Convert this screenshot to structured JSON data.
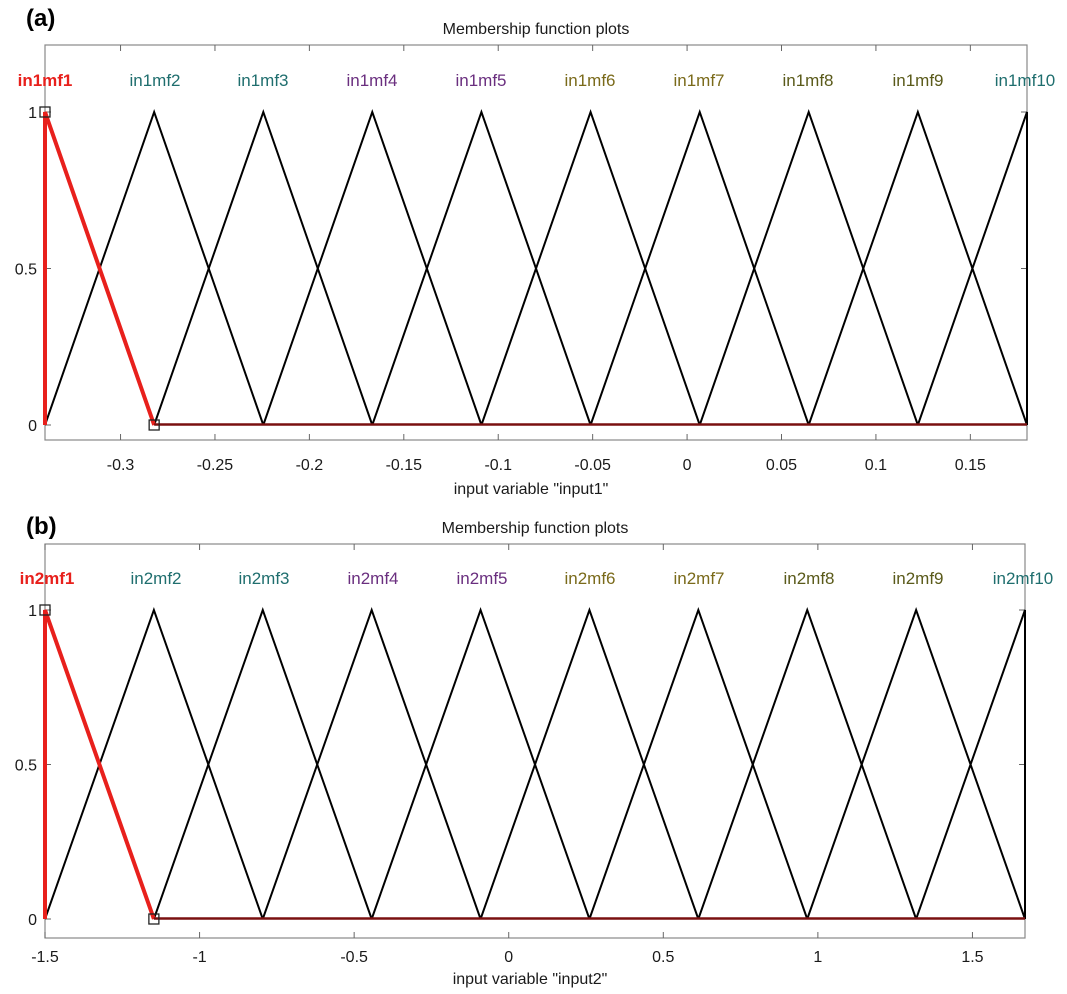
{
  "figure": {
    "panel_labels": [
      "(a)",
      "(b)"
    ]
  },
  "chart_data": [
    {
      "type": "line",
      "panel": "(a)",
      "title": "Membership function plots",
      "xlabel": "input variable \"input1\"",
      "ylabel": "",
      "xlim": [
        -0.34,
        0.18
      ],
      "ylim": [
        0,
        1
      ],
      "xticks": [
        -0.3,
        -0.25,
        -0.2,
        -0.15,
        -0.1,
        -0.05,
        0,
        0.05,
        0.1,
        0.15
      ],
      "xtick_labels": [
        "-0.3",
        "-0.25",
        "-0.2",
        "-0.15",
        "-0.1",
        "-0.05",
        "0",
        "0.05",
        "0.1",
        "0.15"
      ],
      "yticks": [
        0,
        0.5,
        1
      ],
      "ytick_labels": [
        "0",
        "0.5",
        "1"
      ],
      "highlight_color": "#e8201c",
      "line_color": "#000000",
      "label_colors": [
        "#e8201c",
        "#1f6e6e",
        "#1f6e6e",
        "#6a2f7f",
        "#6a2f7f",
        "#7a6a1a",
        "#7a6a1a",
        "#5a5a1a",
        "#5a5a1a",
        "#1f6e6e"
      ],
      "series": [
        {
          "name": "in1mf1",
          "selected": true,
          "x": [
            -0.34,
            -0.34,
            -0.2822
          ],
          "y": [
            0,
            1,
            0
          ]
        },
        {
          "name": "in1mf2",
          "x": [
            -0.34,
            -0.2822,
            -0.2244
          ],
          "y": [
            0,
            1,
            0
          ]
        },
        {
          "name": "in1mf3",
          "x": [
            -0.2822,
            -0.2244,
            -0.1667
          ],
          "y": [
            0,
            1,
            0
          ]
        },
        {
          "name": "in1mf4",
          "x": [
            -0.2244,
            -0.1667,
            -0.1089
          ],
          "y": [
            0,
            1,
            0
          ]
        },
        {
          "name": "in1mf5",
          "x": [
            -0.1667,
            -0.1089,
            -0.0511
          ],
          "y": [
            0,
            1,
            0
          ]
        },
        {
          "name": "in1mf6",
          "x": [
            -0.1089,
            -0.0511,
            0.0067
          ],
          "y": [
            0,
            1,
            0
          ]
        },
        {
          "name": "in1mf7",
          "x": [
            -0.0511,
            0.0067,
            0.0644
          ],
          "y": [
            0,
            1,
            0
          ]
        },
        {
          "name": "in1mf8",
          "x": [
            0.0067,
            0.0644,
            0.1222
          ],
          "y": [
            0,
            1,
            0
          ]
        },
        {
          "name": "in1mf9",
          "x": [
            0.0644,
            0.1222,
            0.18
          ],
          "y": [
            0,
            1,
            0
          ]
        },
        {
          "name": "in1mf10",
          "x": [
            0.1222,
            0.18,
            0.18
          ],
          "y": [
            0,
            1,
            0
          ]
        }
      ]
    },
    {
      "type": "line",
      "panel": "(b)",
      "title": "Membership function plots",
      "xlabel": "input variable \"input2\"",
      "ylabel": "",
      "xlim": [
        -1.5,
        1.67
      ],
      "ylim": [
        0,
        1
      ],
      "xticks": [
        -1.5,
        -1,
        -0.5,
        0,
        0.5,
        1,
        1.5
      ],
      "xtick_labels": [
        "-1.5",
        "-1",
        "-0.5",
        "0",
        "0.5",
        "1",
        "1.5"
      ],
      "yticks": [
        0,
        0.5,
        1
      ],
      "ytick_labels": [
        "0",
        "0.5",
        "1"
      ],
      "highlight_color": "#e8201c",
      "line_color": "#000000",
      "label_colors": [
        "#e8201c",
        "#1f6e6e",
        "#1f6e6e",
        "#6a2f7f",
        "#6a2f7f",
        "#7a6a1a",
        "#7a6a1a",
        "#5a5a1a",
        "#5a5a1a",
        "#1f6e6e"
      ],
      "series": [
        {
          "name": "in2mf1",
          "selected": true,
          "x": [
            -1.5,
            -1.5,
            -1.1478
          ],
          "y": [
            0,
            1,
            0
          ]
        },
        {
          "name": "in2mf2",
          "x": [
            -1.5,
            -1.1478,
            -0.7956
          ],
          "y": [
            0,
            1,
            0
          ]
        },
        {
          "name": "in2mf3",
          "x": [
            -1.1478,
            -0.7956,
            -0.4433
          ],
          "y": [
            0,
            1,
            0
          ]
        },
        {
          "name": "in2mf4",
          "x": [
            -0.7956,
            -0.4433,
            -0.0911
          ],
          "y": [
            0,
            1,
            0
          ]
        },
        {
          "name": "in2mf5",
          "x": [
            -0.4433,
            -0.0911,
            0.2611
          ],
          "y": [
            0,
            1,
            0
          ]
        },
        {
          "name": "in2mf6",
          "x": [
            -0.0911,
            0.2611,
            0.6133
          ],
          "y": [
            0,
            1,
            0
          ]
        },
        {
          "name": "in2mf7",
          "x": [
            0.2611,
            0.6133,
            0.9656
          ],
          "y": [
            0,
            1,
            0
          ]
        },
        {
          "name": "in2mf8",
          "x": [
            0.6133,
            0.9656,
            1.3178
          ],
          "y": [
            0,
            1,
            0
          ]
        },
        {
          "name": "in2mf9",
          "x": [
            0.9656,
            1.3178,
            1.67
          ],
          "y": [
            0,
            1,
            0
          ]
        },
        {
          "name": "in2mf10",
          "x": [
            1.3178,
            1.67,
            1.67
          ],
          "y": [
            0,
            1,
            0
          ]
        }
      ]
    }
  ]
}
